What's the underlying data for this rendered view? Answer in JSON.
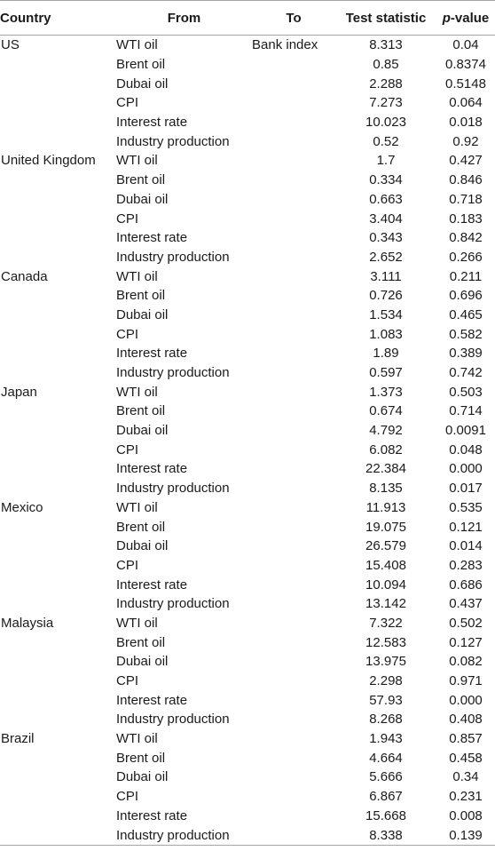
{
  "table": {
    "headers": {
      "country": "Country",
      "from": "From",
      "to": "To",
      "stat": "Test statistic",
      "p_italic": "p",
      "p_rest": "-value"
    },
    "rows": [
      {
        "country": "US",
        "from": "WTI oil",
        "to": "Bank index",
        "stat": "8.313",
        "p": "0.04"
      },
      {
        "country": "",
        "from": "Brent oil",
        "to": "",
        "stat": "0.85",
        "p": "0.8374"
      },
      {
        "country": "",
        "from": "Dubai oil",
        "to": "",
        "stat": "2.288",
        "p": "0.5148"
      },
      {
        "country": "",
        "from": "CPI",
        "to": "",
        "stat": "7.273",
        "p": "0.064"
      },
      {
        "country": "",
        "from": "Interest rate",
        "to": "",
        "stat": "10.023",
        "p": "0.018"
      },
      {
        "country": "",
        "from": "Industry production",
        "to": "",
        "stat": "0.52",
        "p": "0.92"
      },
      {
        "country": "United Kingdom",
        "from": "WTI oil",
        "to": "",
        "stat": "1.7",
        "p": "0.427"
      },
      {
        "country": "",
        "from": "Brent oil",
        "to": "",
        "stat": "0.334",
        "p": "0.846"
      },
      {
        "country": "",
        "from": "Dubai oil",
        "to": "",
        "stat": "0.663",
        "p": "0.718"
      },
      {
        "country": "",
        "from": "CPI",
        "to": "",
        "stat": "3.404",
        "p": "0.183"
      },
      {
        "country": "",
        "from": "Interest rate",
        "to": "",
        "stat": "0.343",
        "p": "0.842"
      },
      {
        "country": "",
        "from": "Industry production",
        "to": "",
        "stat": "2.652",
        "p": "0.266"
      },
      {
        "country": "Canada",
        "from": "WTI oil",
        "to": "",
        "stat": "3.111",
        "p": "0.211"
      },
      {
        "country": "",
        "from": "Brent oil",
        "to": "",
        "stat": "0.726",
        "p": "0.696"
      },
      {
        "country": "",
        "from": "Dubai oil",
        "to": "",
        "stat": "1.534",
        "p": "0.465"
      },
      {
        "country": "",
        "from": "CPI",
        "to": "",
        "stat": "1.083",
        "p": "0.582"
      },
      {
        "country": "",
        "from": "Interest rate",
        "to": "",
        "stat": "1.89",
        "p": "0.389"
      },
      {
        "country": "",
        "from": "Industry production",
        "to": "",
        "stat": "0.597",
        "p": "0.742"
      },
      {
        "country": "Japan",
        "from": "WTI oil",
        "to": "",
        "stat": "1.373",
        "p": "0.503"
      },
      {
        "country": "",
        "from": "Brent oil",
        "to": "",
        "stat": "0.674",
        "p": "0.714"
      },
      {
        "country": "",
        "from": "Dubai oil",
        "to": "",
        "stat": "4.792",
        "p": "0.0091"
      },
      {
        "country": "",
        "from": "CPI",
        "to": "",
        "stat": "6.082",
        "p": "0.048"
      },
      {
        "country": "",
        "from": "Interest rate",
        "to": "",
        "stat": "22.384",
        "p": "0.000"
      },
      {
        "country": "",
        "from": "Industry production",
        "to": "",
        "stat": "8.135",
        "p": "0.017"
      },
      {
        "country": "Mexico",
        "from": "WTI oil",
        "to": "",
        "stat": "11.913",
        "p": "0.535"
      },
      {
        "country": "",
        "from": "Brent oil",
        "to": "",
        "stat": "19.075",
        "p": "0.121"
      },
      {
        "country": "",
        "from": "Dubai oil",
        "to": "",
        "stat": "26.579",
        "p": "0.014"
      },
      {
        "country": "",
        "from": "CPI",
        "to": "",
        "stat": "15.408",
        "p": "0.283"
      },
      {
        "country": "",
        "from": "Interest rate",
        "to": "",
        "stat": "10.094",
        "p": "0.686"
      },
      {
        "country": "",
        "from": "Industry production",
        "to": "",
        "stat": "13.142",
        "p": "0.437"
      },
      {
        "country": "Malaysia",
        "from": "WTI oil",
        "to": "",
        "stat": "7.322",
        "p": "0.502"
      },
      {
        "country": "",
        "from": "Brent oil",
        "to": "",
        "stat": "12.583",
        "p": "0.127"
      },
      {
        "country": "",
        "from": "Dubai oil",
        "to": "",
        "stat": "13.975",
        "p": "0.082"
      },
      {
        "country": "",
        "from": "CPI",
        "to": "",
        "stat": "2.298",
        "p": "0.971"
      },
      {
        "country": "",
        "from": "Interest rate",
        "to": "",
        "stat": "57.93",
        "p": "0.000"
      },
      {
        "country": "",
        "from": "Industry production",
        "to": "",
        "stat": "8.268",
        "p": "0.408"
      },
      {
        "country": "Brazil",
        "from": "WTI oil",
        "to": "",
        "stat": "1.943",
        "p": "0.857"
      },
      {
        "country": "",
        "from": "Brent oil",
        "to": "",
        "stat": "4.664",
        "p": "0.458"
      },
      {
        "country": "",
        "from": "Dubai oil",
        "to": "",
        "stat": "5.666",
        "p": "0.34"
      },
      {
        "country": "",
        "from": "CPI",
        "to": "",
        "stat": "6.867",
        "p": "0.231"
      },
      {
        "country": "",
        "from": "Interest rate",
        "to": "",
        "stat": "15.668",
        "p": "0.008"
      },
      {
        "country": "",
        "from": "Industry production",
        "to": "",
        "stat": "8.338",
        "p": "0.139"
      }
    ]
  }
}
